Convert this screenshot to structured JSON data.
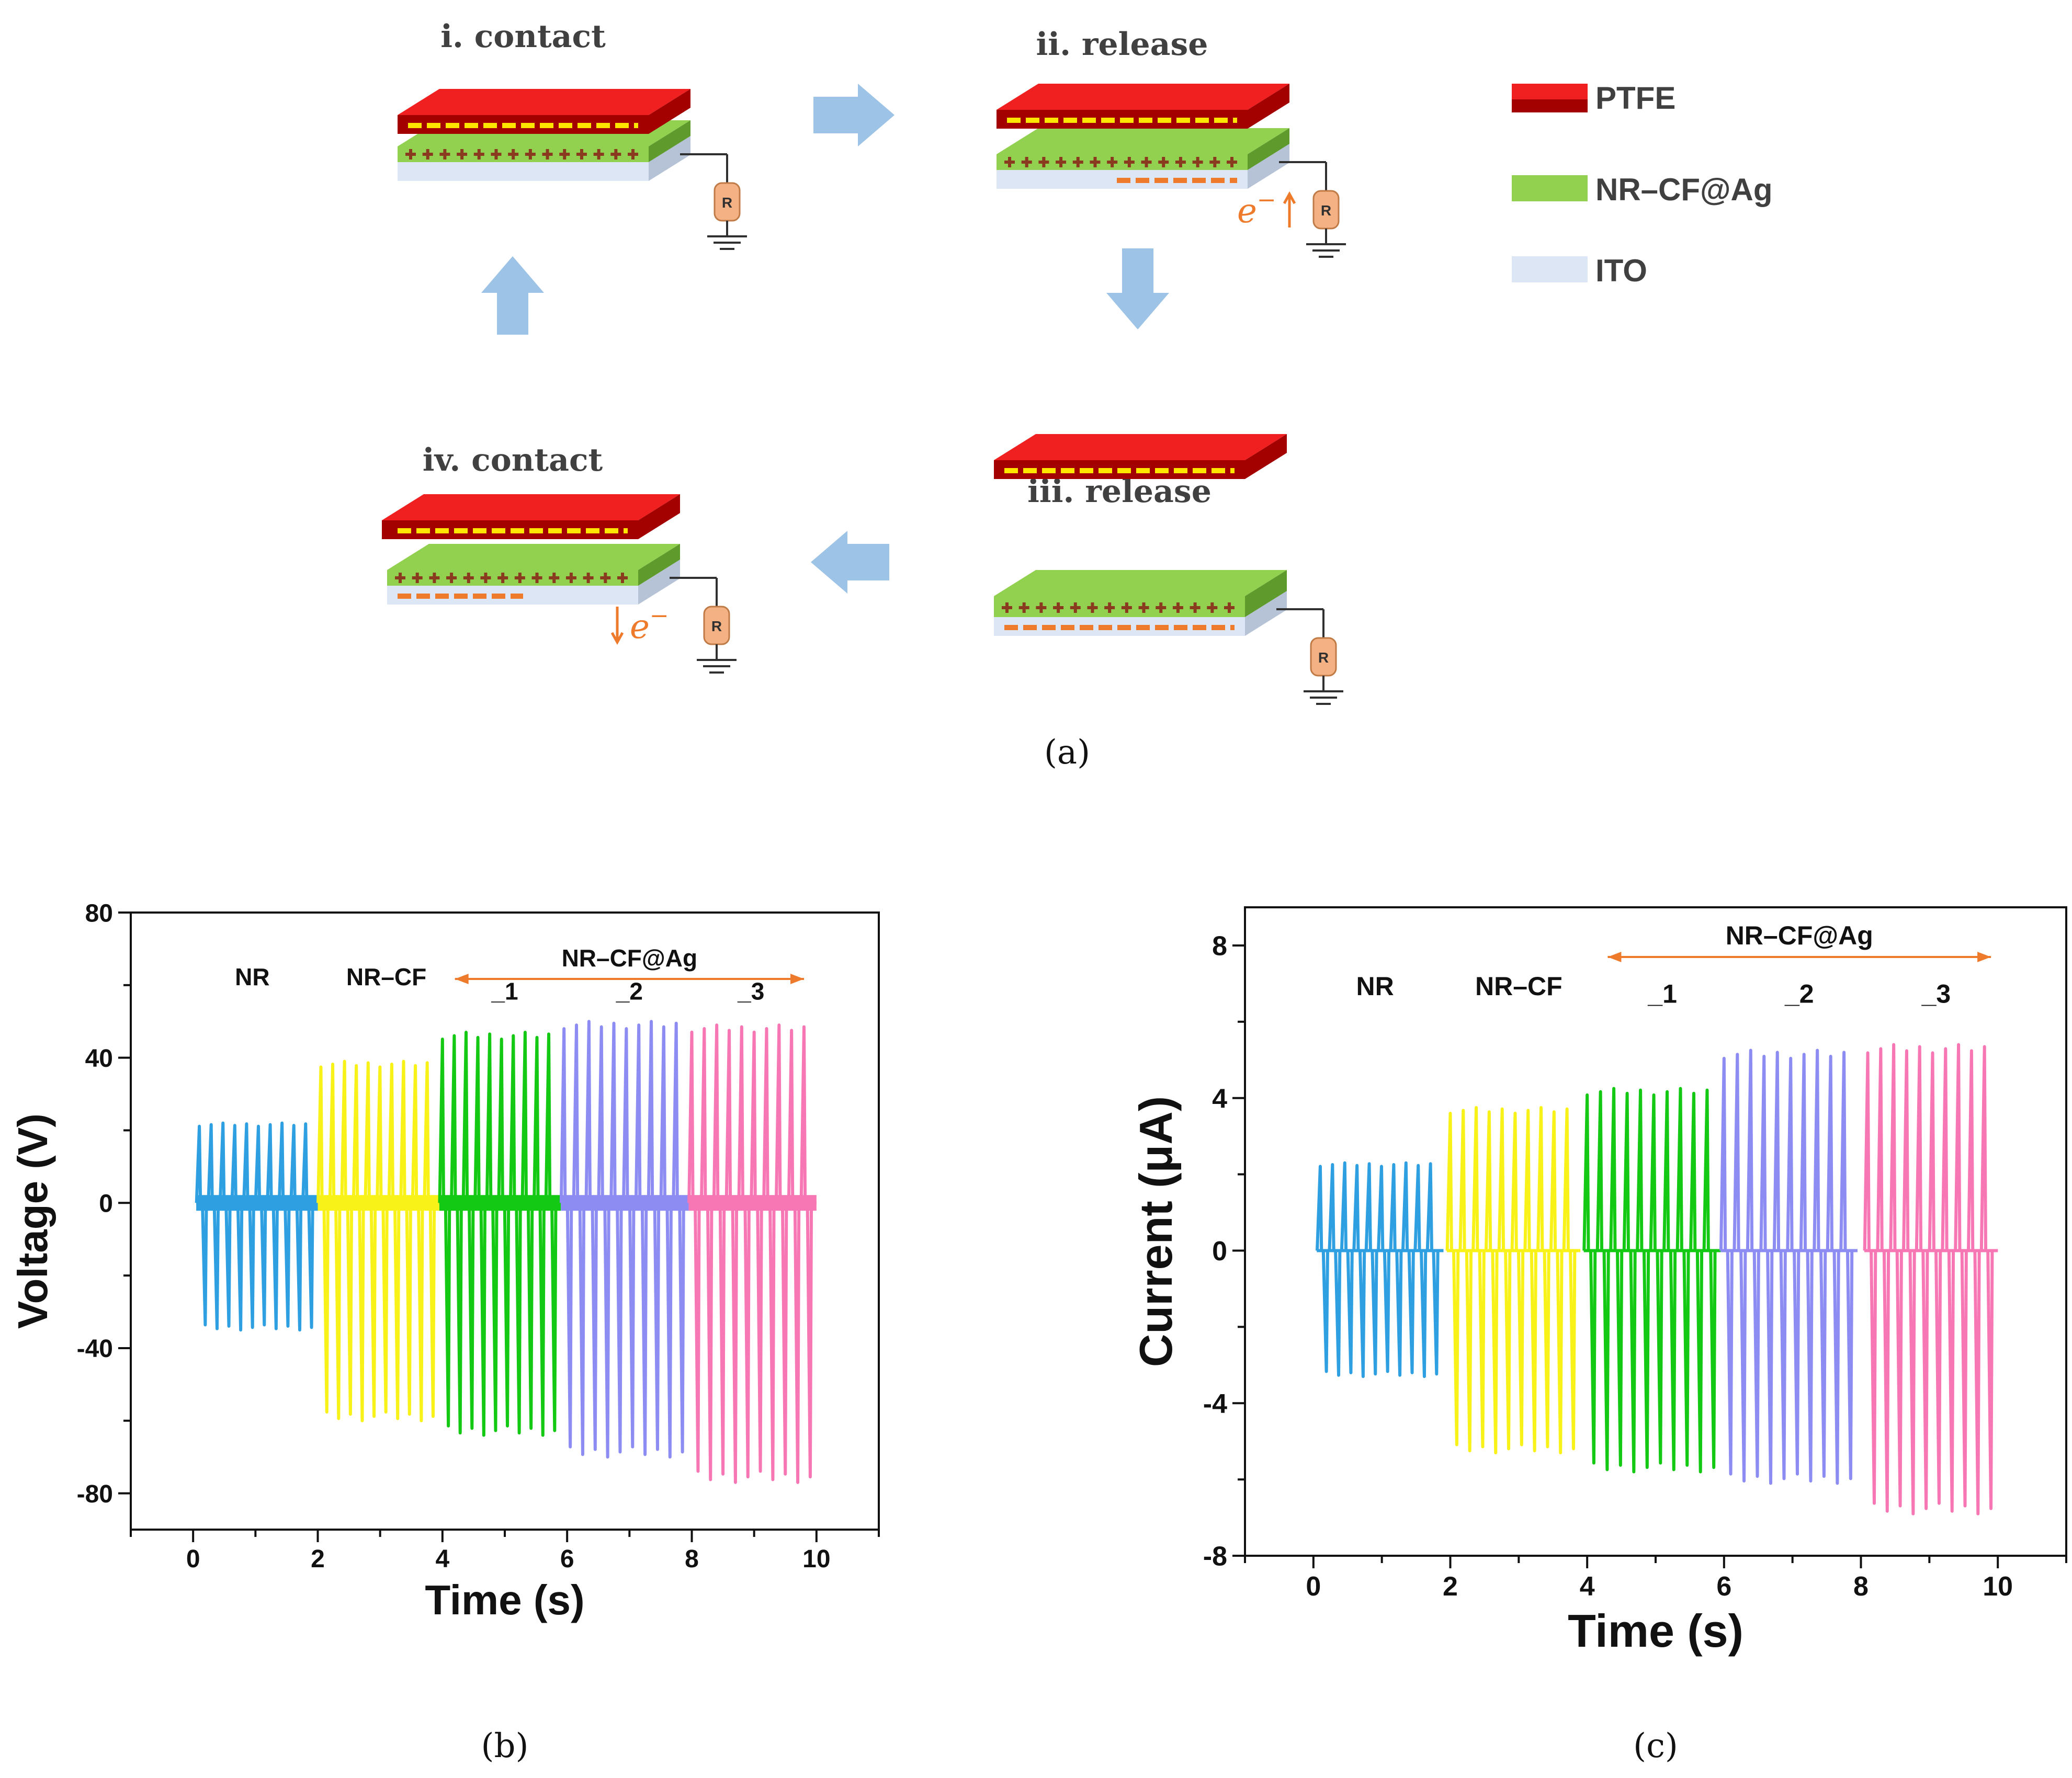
{
  "colors": {
    "ptfe": "#f02020",
    "ptfe_dark": "#a30000",
    "nrcf": "#92d050",
    "nrcf_dark": "#5e9a2c",
    "ito": "#dce6f4",
    "ito_dark": "#b6c3d6",
    "arrow": "#9dc3e6",
    "orange": "#ee7a2b",
    "plus": "#8a3a1e",
    "yellow": "#ffe600"
  },
  "schematic": {
    "stages": [
      {
        "title": "i. contact",
        "state": "contact",
        "top_charge": true,
        "bottom_charge": false,
        "electron": "none"
      },
      {
        "title": "ii. release",
        "state": "release",
        "top_charge": true,
        "bottom_charge": true,
        "electron": "up"
      },
      {
        "title": "iii. release",
        "state": "separated",
        "top_charge": true,
        "bottom_charge": true,
        "electron": "none"
      },
      {
        "title": "iv. contact",
        "state": "contact",
        "top_charge": true,
        "bottom_charge": true,
        "electron": "down"
      }
    ],
    "resistor_label": "R",
    "electron_symbol": "e",
    "electron_sup": "−",
    "legend": [
      {
        "label": "PTFE",
        "color_key": "ptfe"
      },
      {
        "label": "NR–CF@Ag",
        "color_key": "nrcf"
      },
      {
        "label": "ITO",
        "color_key": "ito"
      }
    ],
    "caption": "(a)"
  },
  "chart_data": [
    {
      "type": "line",
      "panel": "b",
      "caption": "(b)",
      "title": "",
      "xlabel": "Time (s)",
      "ylabel": "Voltage (V)",
      "xlim": [
        -1,
        11
      ],
      "ylim": [
        -90,
        80
      ],
      "xticks": [
        0,
        2,
        4,
        6,
        8,
        10
      ],
      "yticks": [
        80,
        40,
        0,
        -40,
        -80
      ],
      "series": [
        {
          "name": "NR",
          "color": "#2e9fe0",
          "t_start": 0.1,
          "t_end": 1.9,
          "pulses": 10,
          "peak_pos": 22,
          "peak_neg": -35
        },
        {
          "name": "NR–CF",
          "color": "#f8f218",
          "t_start": 2.05,
          "t_end": 3.85,
          "pulses": 10,
          "peak_pos": 39,
          "peak_neg": -60
        },
        {
          "name": "NR–CF@Ag_1",
          "color": "#13c913",
          "t_start": 4.0,
          "t_end": 5.8,
          "pulses": 10,
          "peak_pos": 47,
          "peak_neg": -64
        },
        {
          "name": "NR–CF@Ag_2",
          "color": "#8c8cf2",
          "t_start": 5.95,
          "t_end": 7.85,
          "pulses": 10,
          "peak_pos": 50,
          "peak_neg": -70
        },
        {
          "name": "NR–CF@Ag_3",
          "color": "#f777b4",
          "t_start": 8.0,
          "t_end": 9.9,
          "pulses": 10,
          "peak_pos": 49,
          "peak_neg": -77
        }
      ],
      "annotations": {
        "group_label": "NR–CF@Ag",
        "group_range": [
          4.2,
          9.8
        ],
        "labels": [
          {
            "text": "NR",
            "t": 0.95,
            "v": 60
          },
          {
            "text": "NR–CF",
            "t": 3.1,
            "v": 60
          },
          {
            "text": "_1",
            "t": 5.0,
            "v": 56
          },
          {
            "text": "_2",
            "t": 7.0,
            "v": 56
          },
          {
            "text": "_3",
            "t": 8.95,
            "v": 56
          }
        ]
      }
    },
    {
      "type": "line",
      "panel": "c",
      "caption": "(c)",
      "title": "",
      "xlabel": "Time (s)",
      "ylabel": "Current (μA)",
      "xlim": [
        -1,
        11
      ],
      "ylim": [
        -8,
        9
      ],
      "xticks": [
        0,
        2,
        4,
        6,
        8,
        10
      ],
      "yticks": [
        8,
        4,
        0,
        -4,
        -8
      ],
      "series": [
        {
          "name": "NR",
          "color": "#2e9fe0",
          "t_start": 0.1,
          "t_end": 1.8,
          "pulses": 10,
          "peak_pos": 2.3,
          "peak_neg": -3.3
        },
        {
          "name": "NR–CF",
          "color": "#f8f218",
          "t_start": 2.0,
          "t_end": 3.8,
          "pulses": 10,
          "peak_pos": 3.75,
          "peak_neg": -5.3
        },
        {
          "name": "NR–CF@Ag_1",
          "color": "#13c913",
          "t_start": 4.0,
          "t_end": 5.85,
          "pulses": 10,
          "peak_pos": 4.25,
          "peak_neg": -5.8
        },
        {
          "name": "NR–CF@Ag_2",
          "color": "#8c8cf2",
          "t_start": 6.0,
          "t_end": 7.85,
          "pulses": 10,
          "peak_pos": 5.25,
          "peak_neg": -6.1
        },
        {
          "name": "NR–CF@Ag_3",
          "color": "#f777b4",
          "t_start": 8.1,
          "t_end": 9.9,
          "pulses": 10,
          "peak_pos": 5.4,
          "peak_neg": -6.9
        }
      ],
      "annotations": {
        "group_label": "NR–CF@Ag",
        "group_range": [
          4.3,
          9.9
        ],
        "labels": [
          {
            "text": "NR",
            "t": 0.9,
            "v": 6.7
          },
          {
            "text": "NR–CF",
            "t": 3.0,
            "v": 6.7
          },
          {
            "text": "_1",
            "t": 5.1,
            "v": 6.5
          },
          {
            "text": "_2",
            "t": 7.1,
            "v": 6.5
          },
          {
            "text": "_3",
            "t": 9.1,
            "v": 6.5
          }
        ]
      }
    }
  ]
}
